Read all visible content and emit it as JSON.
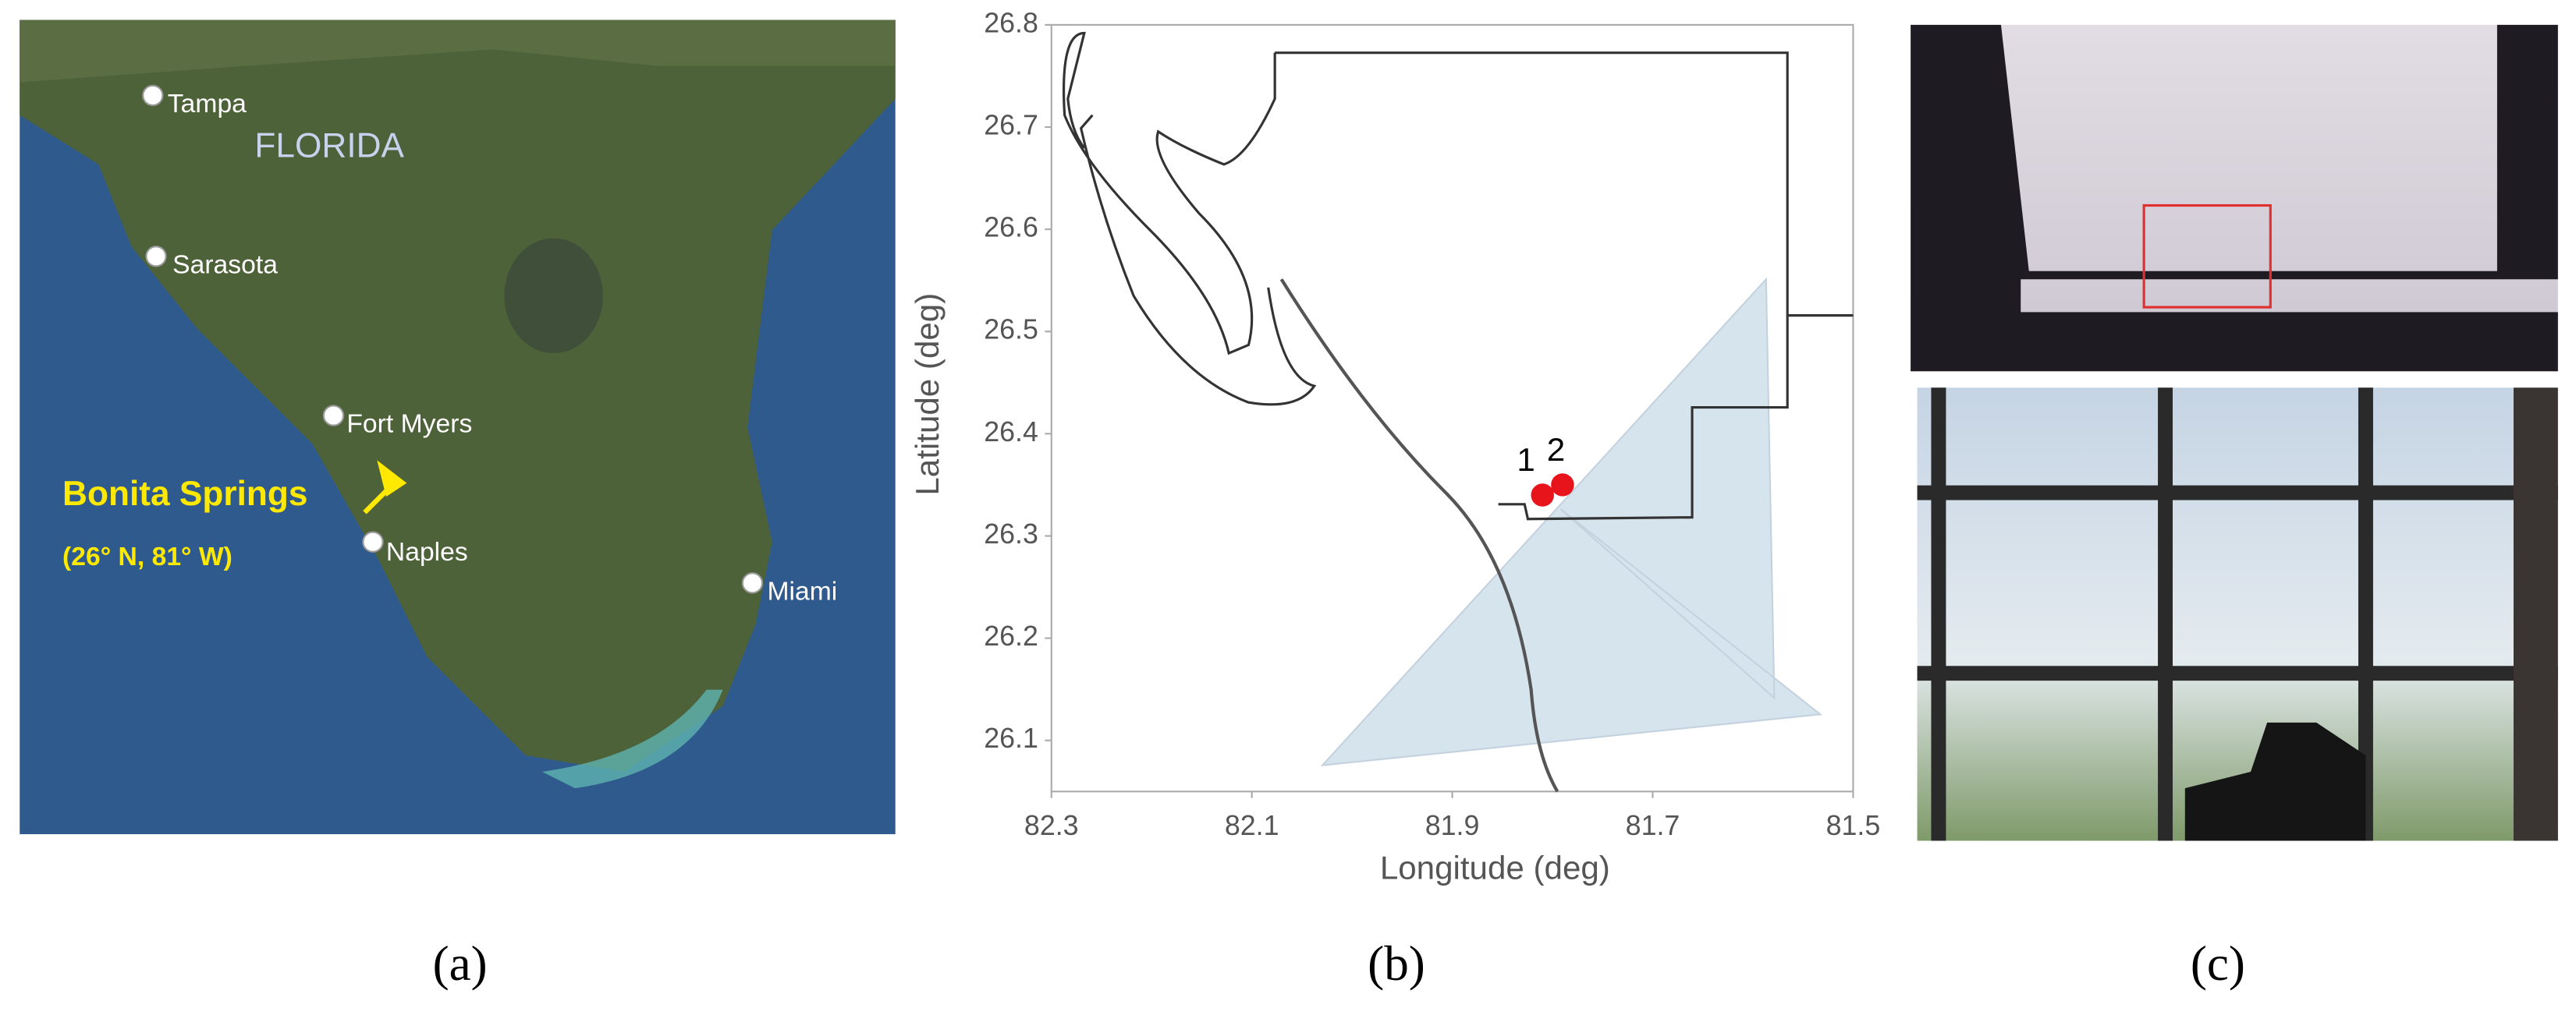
{
  "panels": [
    "(a)",
    "(b)",
    "(c)"
  ],
  "map": {
    "labels": [
      "Tampa",
      "FLORIDA",
      "Sarasota",
      "Fort Myers",
      "Bonita Springs",
      "(26° N, 81° W)",
      "Naples",
      "Miami"
    ]
  },
  "chart_data": {
    "type": "scatter",
    "xlabel": "Longitude (deg)",
    "ylabel": "Latitude (deg)",
    "xlim": [
      82.3,
      81.5
    ],
    "ylim": [
      26.05,
      26.8
    ],
    "xticks": [
      82.3,
      82.1,
      81.9,
      81.7,
      81.5
    ],
    "yticks": [
      26.1,
      26.2,
      26.3,
      26.4,
      26.5,
      26.6,
      26.7,
      26.8
    ],
    "x": [
      81.81,
      81.79
    ],
    "values": [
      26.34,
      26.35
    ],
    "point_labels": [
      "1",
      "2"
    ],
    "color": "#e8141c"
  }
}
